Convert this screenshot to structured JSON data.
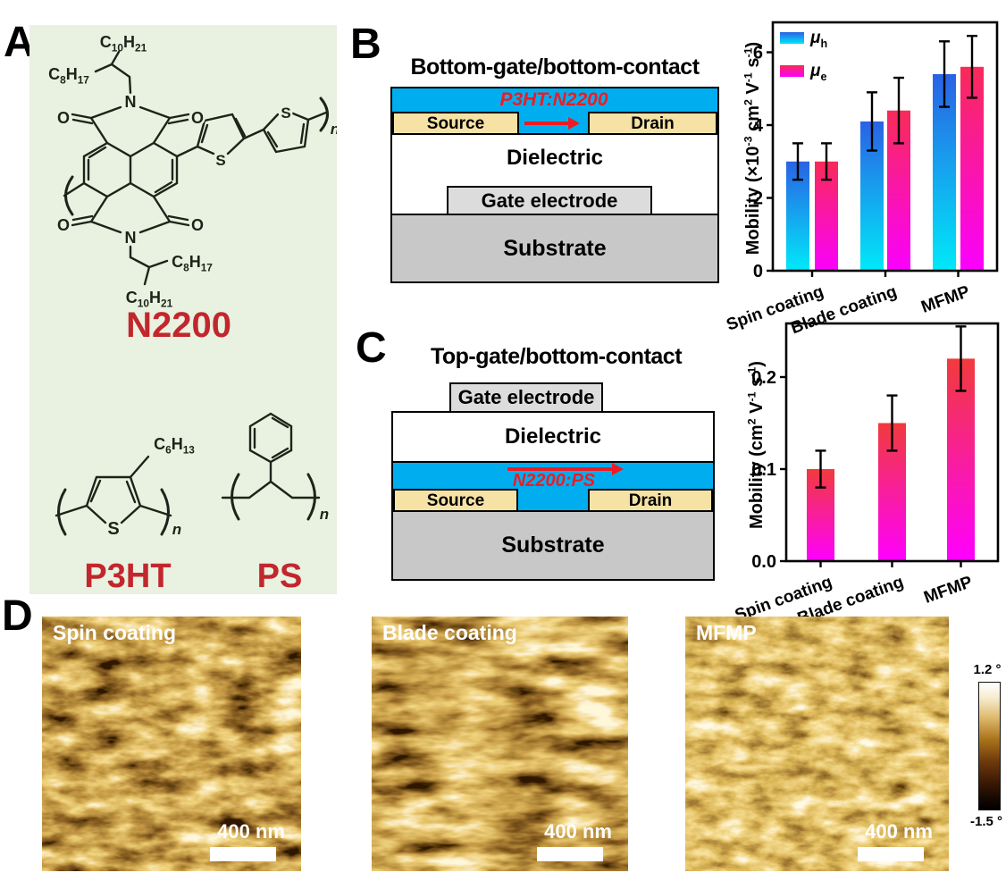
{
  "figure": {
    "panel_a": {
      "label": "A",
      "background_color": "#E9F1E0",
      "name_color": "#C1272D",
      "molecules": {
        "n2200": {
          "name": "N2200",
          "chain_top": "C{_10}H{_21}",
          "chain_top_side": "C{_8}H{_17}",
          "chain_bottom_side": "C{_8}H{_17}",
          "chain_bottom": "C{_10}H{_21}",
          "repeat": "n"
        },
        "p3ht": {
          "name": "P3HT",
          "side_chain": "C{_6}H{_13}",
          "repeat": "n"
        },
        "ps": {
          "name": "PS",
          "repeat": "n"
        }
      },
      "atoms": {
        "o": "O",
        "n": "N",
        "s": "S"
      }
    },
    "panel_b": {
      "label": "B",
      "title": "Bottom-gate/bottom-contact",
      "active_layer": "P3HT:N2200",
      "layers": {
        "source": "Source",
        "drain": "Drain",
        "dielectric": "Dielectric",
        "gate": "Gate electrode",
        "substrate": "Substrate"
      },
      "colors": {
        "semiconductor": "#00AEEF",
        "electrode": "#F6E2A4",
        "gate": "#DCDCDC",
        "substrate": "#C8C8C8",
        "accent": "#ED1C24"
      }
    },
    "panel_c": {
      "label": "C",
      "title": "Top-gate/bottom-contact",
      "active_layer": "N2200:PS",
      "layers": {
        "source": "Source",
        "drain": "Drain",
        "dielectric": "Dielectric",
        "gate": "Gate electrode",
        "substrate": "Substrate"
      }
    },
    "panel_d": {
      "label": "D",
      "images": [
        {
          "label": "Spin coating",
          "scale_bar": "400 nm"
        },
        {
          "label": "Blade coating",
          "scale_bar": "400 nm"
        },
        {
          "label": "MFMP",
          "scale_bar": "400 nm"
        }
      ],
      "colorbar": {
        "max_label": "1.2 °",
        "min_label": "-1.5 °"
      }
    }
  },
  "chart_data": [
    {
      "id": "chart-b",
      "type": "bar",
      "title": "",
      "ylabel": "Mobility (×10{^-3} cm{^2} V{^-1} s{^-1})",
      "categories": [
        "Spin coating",
        "Blade coating",
        "MFMP"
      ],
      "series": [
        {
          "name": "μ{_h}",
          "values": [
            3.0,
            4.1,
            5.4
          ],
          "errors": [
            0.5,
            0.8,
            0.9
          ],
          "gradient": [
            "#2A62E4",
            "#00E9F9"
          ]
        },
        {
          "name": "μ{_e}",
          "values": [
            3.0,
            4.4,
            5.6
          ],
          "errors": [
            0.5,
            0.9,
            0.85
          ],
          "gradient": [
            "#F82B57",
            "#FB00FE"
          ]
        }
      ],
      "yticks": [
        0,
        2,
        4,
        6
      ],
      "ytick_labels": [
        "0",
        "2",
        "4",
        "6"
      ],
      "ylim": [
        0,
        6.8
      ],
      "legend_position": "top-left",
      "grid": false
    },
    {
      "id": "chart-c",
      "type": "bar",
      "title": "",
      "ylabel": "Mobility (cm{^2} V{^-1} s{^-1})",
      "categories": [
        "Spin coating",
        "Blade coating",
        "MFMP"
      ],
      "series": [
        {
          "name": "mobility",
          "values": [
            0.1,
            0.15,
            0.22
          ],
          "errors": [
            0.02,
            0.03,
            0.035
          ],
          "gradient": [
            "#F13B3B",
            "#FF00FF"
          ]
        }
      ],
      "yticks": [
        0,
        0.1,
        0.2
      ],
      "ytick_labels": [
        "0.0",
        "0.1",
        "0.2"
      ],
      "ylim": [
        0,
        0.258
      ],
      "grid": false
    }
  ]
}
